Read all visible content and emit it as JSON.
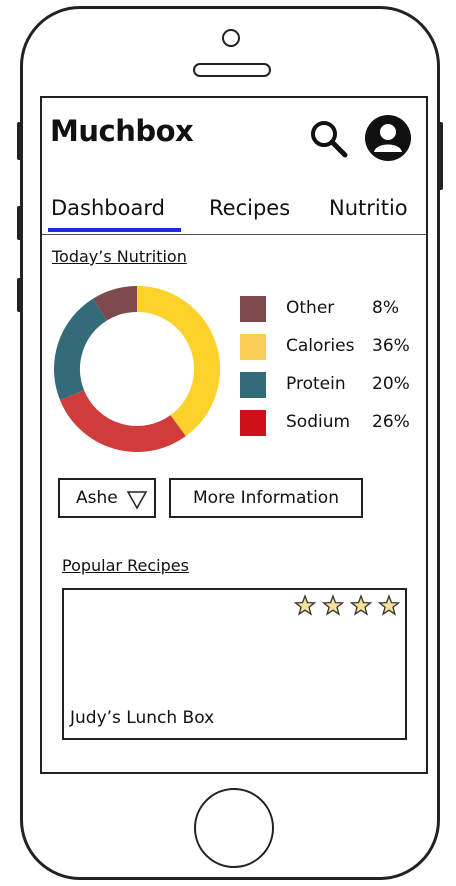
{
  "app": {
    "title": "Muchbox"
  },
  "header": {
    "search_icon": "search-icon",
    "profile_icon": "user-profile-icon"
  },
  "tabs": [
    {
      "label": "Dashboard",
      "active": true
    },
    {
      "label": "Recipes",
      "active": false
    },
    {
      "label": "Nutritio",
      "active": false
    }
  ],
  "nutrition": {
    "title": "Today’s Nutrition",
    "chart_data": {
      "type": "pie",
      "categories": [
        "Other",
        "Calories",
        "Protein",
        "Sodium"
      ],
      "values": [
        8,
        36,
        20,
        26
      ],
      "value_labels": [
        "8%",
        "36%",
        "20%",
        "26%"
      ],
      "donut_segments_clockwise_from_top": [
        "Calories",
        "Sodium",
        "Protein",
        "Other"
      ],
      "donut_segment_colors": [
        "#fcd12a",
        "#d03b3b",
        "#336b79",
        "#7f4a4e"
      ],
      "legend_colors": [
        "#7f4a4e",
        "#f9cf56",
        "#336b79",
        "#d0111b"
      ]
    }
  },
  "controls": {
    "person_select": {
      "value": "Ashe",
      "icon": "dropdown-triangle-icon"
    },
    "more_info_label": "More Information"
  },
  "popular": {
    "title": "Popular Recipes",
    "recipes": [
      {
        "name": "Judy’s Lunch Box",
        "rating": 4,
        "max_rating": 4
      }
    ]
  },
  "colors": {
    "tab_underline": "#1a2bd8",
    "star_fill": "#f7e09a"
  }
}
